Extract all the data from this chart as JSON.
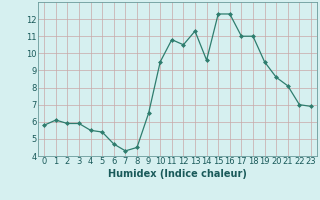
{
  "x": [
    0,
    1,
    2,
    3,
    4,
    5,
    6,
    7,
    8,
    9,
    10,
    11,
    12,
    13,
    14,
    15,
    16,
    17,
    18,
    19,
    20,
    21,
    22,
    23
  ],
  "y": [
    5.8,
    6.1,
    5.9,
    5.9,
    5.5,
    5.4,
    4.7,
    4.3,
    4.5,
    6.5,
    9.5,
    10.8,
    10.5,
    11.3,
    9.6,
    12.3,
    12.3,
    11.0,
    11.0,
    9.5,
    8.6,
    8.1,
    7.0,
    6.9
  ],
  "line_color": "#2e7d6e",
  "marker": "D",
  "marker_size": 2.0,
  "bg_color": "#d6f0f0",
  "grid_color_major": "#c8a8a8",
  "grid_color_minor": "#ddc0c0",
  "xlabel": "Humidex (Indice chaleur)",
  "ylim": [
    4,
    13
  ],
  "xlim": [
    -0.5,
    23.5
  ],
  "xlabel_fontsize": 7,
  "tick_fontsize": 6,
  "tick_color": "#1a5a5a",
  "label_color": "#1a5a5a",
  "spine_color": "#6a9a9a"
}
